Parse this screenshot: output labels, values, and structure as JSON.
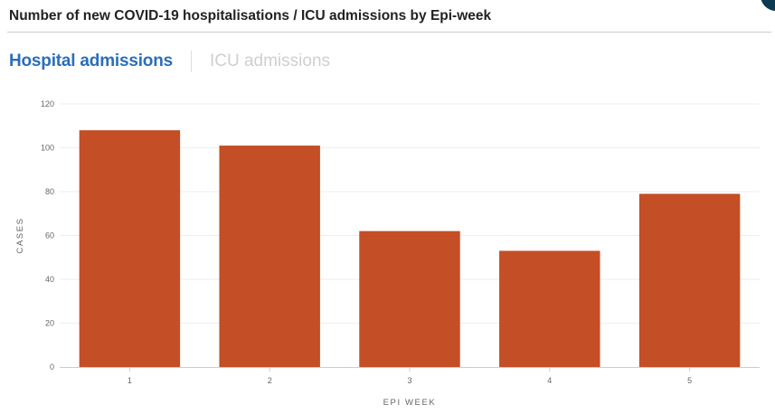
{
  "title": "Number of new COVID-19 hospitalisations / ICU admissions by Epi-week",
  "tabs": [
    {
      "label": "Hospital admissions",
      "active": true
    },
    {
      "label": "ICU admissions",
      "active": false
    }
  ],
  "colors": {
    "bar": "#c44e25",
    "active_tab": "#2a6ebb",
    "inactive_tab": "#cfcfcf",
    "badge": "#0d3a52"
  },
  "chart_data": {
    "type": "bar",
    "categories": [
      "1",
      "2",
      "3",
      "4",
      "5"
    ],
    "values": [
      108,
      101,
      62,
      53,
      79
    ],
    "xlabel": "EPI WEEK",
    "ylabel": "CASES",
    "ylim": [
      0,
      120
    ],
    "yticks": [
      0,
      20,
      40,
      60,
      80,
      100,
      120
    ],
    "grid": true,
    "legend": "none"
  }
}
